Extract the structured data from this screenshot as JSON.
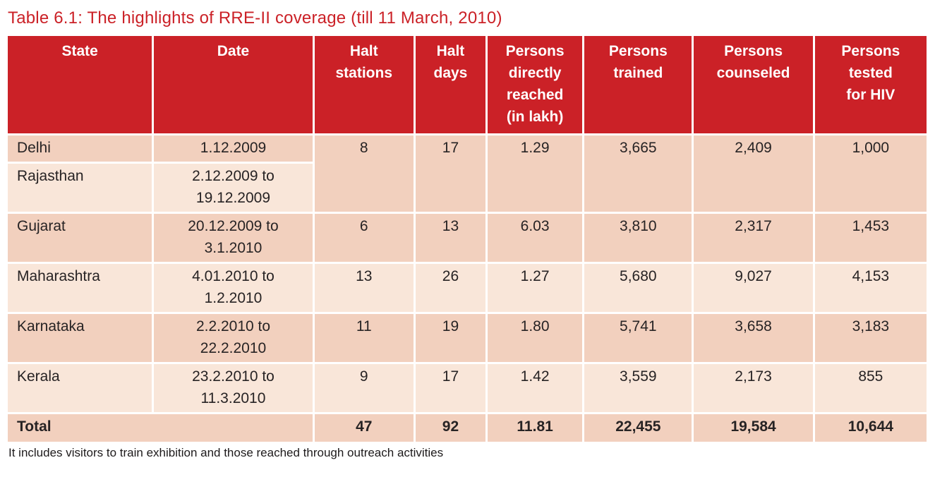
{
  "page": {
    "title": "Table 6.1: The highlights of RRE-II coverage (till 11 March, 2010)",
    "footnote": "It includes visitors to train exhibition and those reached through outreach activities"
  },
  "colors": {
    "header_bg": "#cb2127",
    "title_text": "#cb2127",
    "row_dark": "#f2d0be",
    "row_light": "#f9e6d9",
    "header_text": "#ffffff",
    "body_text": "#272324"
  },
  "table": {
    "columns": [
      "State",
      "Date",
      "Halt\nstations",
      "Halt\ndays",
      "Persons\ndirectly\nreached\n(in lakh)",
      "Persons\ntrained",
      "Persons\ncounseled",
      "Persons\ntested\nfor HIV"
    ],
    "rows": [
      {
        "state": "Delhi",
        "date": "1.12.2009"
      },
      {
        "state": "Rajasthan",
        "date": "2.12.2009 to\n19.12.2009"
      },
      {
        "state": "Gujarat",
        "date": "20.12.2009 to\n3.1.2010",
        "halt_stations": "6",
        "halt_days": "13",
        "persons_reached": "6.03",
        "persons_trained": "3,810",
        "persons_counseled": "2,317",
        "persons_tested": "1,453"
      },
      {
        "state": "Maharashtra",
        "date": "4.01.2010 to\n1.2.2010",
        "halt_stations": "13",
        "halt_days": "26",
        "persons_reached": "1.27",
        "persons_trained": "5,680",
        "persons_counseled": "9,027",
        "persons_tested": "4,153"
      },
      {
        "state": "Karnataka",
        "date": "2.2.2010 to\n22.2.2010",
        "halt_stations": "11",
        "halt_days": "19",
        "persons_reached": "1.80",
        "persons_trained": "5,741",
        "persons_counseled": "3,658",
        "persons_tested": "3,183"
      },
      {
        "state": "Kerala",
        "date": "23.2.2010 to\n11.3.2010",
        "halt_stations": "9",
        "halt_days": "17",
        "persons_reached": "1.42",
        "persons_trained": "3,559",
        "persons_counseled": "2,173",
        "persons_tested": "855"
      }
    ],
    "delhi_rajasthan_combined": {
      "halt_stations": "8",
      "halt_days": "17",
      "persons_reached": "1.29",
      "persons_trained": "3,665",
      "persons_counseled": "2,409",
      "persons_tested": "1,000"
    },
    "total_row": {
      "label": "Total",
      "halt_stations": "47",
      "halt_days": "92",
      "persons_reached": "11.81",
      "persons_trained": "22,455",
      "persons_counseled": "19,584",
      "persons_tested": "10,644"
    }
  }
}
